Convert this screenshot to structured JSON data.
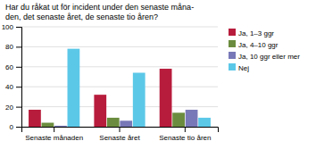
{
  "chart_data": {
    "type": "bar",
    "title": "Har du råkat ut för incident under den senaste måna-\nden, det senaste året, de senaste tio åren?",
    "categories": [
      "Senaste månaden",
      "Senaste året",
      "Senaste tio åren"
    ],
    "series": [
      {
        "name": "Ja, 1–3 ggr",
        "color": "#b81c3c",
        "values": [
          17,
          32,
          58
        ]
      },
      {
        "name": "Ja, 4–10 ggr",
        "color": "#6b8c3e",
        "values": [
          4,
          9,
          14
        ]
      },
      {
        "name": "Ja, 10 ggr eller mer",
        "color": "#7878b8",
        "values": [
          1,
          6,
          17
        ]
      },
      {
        "name": "Nej",
        "color": "#5cc8e8",
        "values": [
          78,
          54,
          9
        ]
      }
    ],
    "ylim": [
      0,
      100
    ],
    "yticks": [
      0,
      20,
      40,
      60,
      80,
      100
    ],
    "grid": true,
    "legend": "right"
  }
}
